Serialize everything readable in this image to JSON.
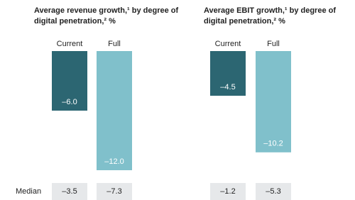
{
  "chart_data": [
    {
      "type": "bar",
      "title": "Average revenue growth,¹ by degree of digital penetration,² %",
      "categories": [
        "Current",
        "Full"
      ],
      "values": [
        -6.0,
        -12.0
      ],
      "value_labels": [
        "–6.0",
        "–12.0"
      ],
      "colors": [
        "#2c6672",
        "#80c0cb"
      ],
      "ylim": [
        -13,
        0
      ],
      "median": {
        "label": "Median",
        "values": [
          -3.5,
          -7.3
        ],
        "value_labels": [
          "–3.5",
          "–7.3"
        ]
      }
    },
    {
      "type": "bar",
      "title": "Average EBIT growth,¹ by degree of digital penetration,² %",
      "categories": [
        "Current",
        "Full"
      ],
      "values": [
        -4.5,
        -10.2
      ],
      "value_labels": [
        "–4.5",
        "–10.2"
      ],
      "colors": [
        "#2c6672",
        "#80c0cb"
      ],
      "ylim": [
        -13,
        0
      ],
      "median": {
        "values": [
          -1.2,
          -5.3
        ],
        "value_labels": [
          "–1.2",
          "–5.3"
        ]
      }
    }
  ]
}
